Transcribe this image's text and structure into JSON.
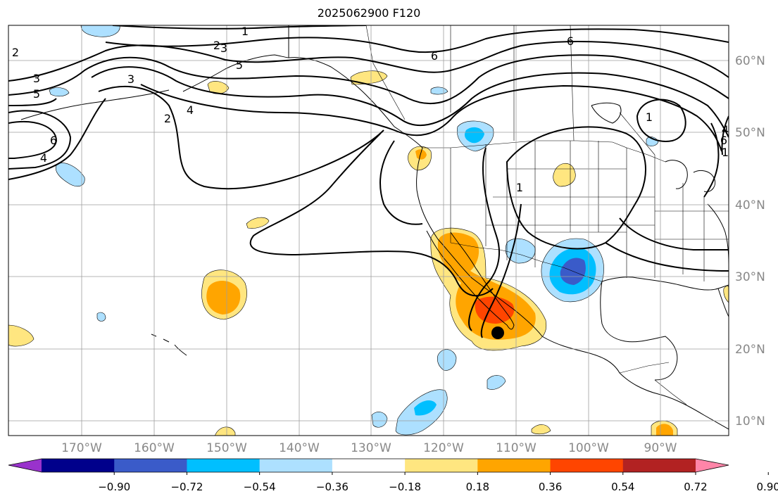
{
  "title": "2025062900 F120",
  "map": {
    "lon_ticks": [
      "170°W",
      "160°W",
      "150°W",
      "140°W",
      "130°W",
      "120°W",
      "110°W",
      "100°W",
      "90°W"
    ],
    "lat_ticks": [
      "60°N",
      "50°N",
      "40°N",
      "30°N",
      "20°N",
      "10°N"
    ],
    "contour_labels": [
      "1",
      "2",
      "3",
      "5",
      "6",
      "4",
      "2",
      "3",
      "2",
      "4",
      "6",
      "1",
      "6",
      "1",
      "1",
      "3",
      "5",
      "6",
      "4"
    ],
    "marker": "black-dot"
  },
  "colorbar": {
    "ticks": [
      "−0.90",
      "−0.72",
      "−0.54",
      "−0.36",
      "−0.18",
      "0.18",
      "0.36",
      "0.54",
      "0.72",
      "0.90"
    ],
    "colors": [
      "#9932CC",
      "#00008B",
      "#3A5BC9",
      "#00BFFF",
      "#ADE0FF",
      "#FFFFFF",
      "#FFE680",
      "#FFA500",
      "#FF4500",
      "#B22222",
      "#FF85A8"
    ],
    "extend": "both"
  }
}
